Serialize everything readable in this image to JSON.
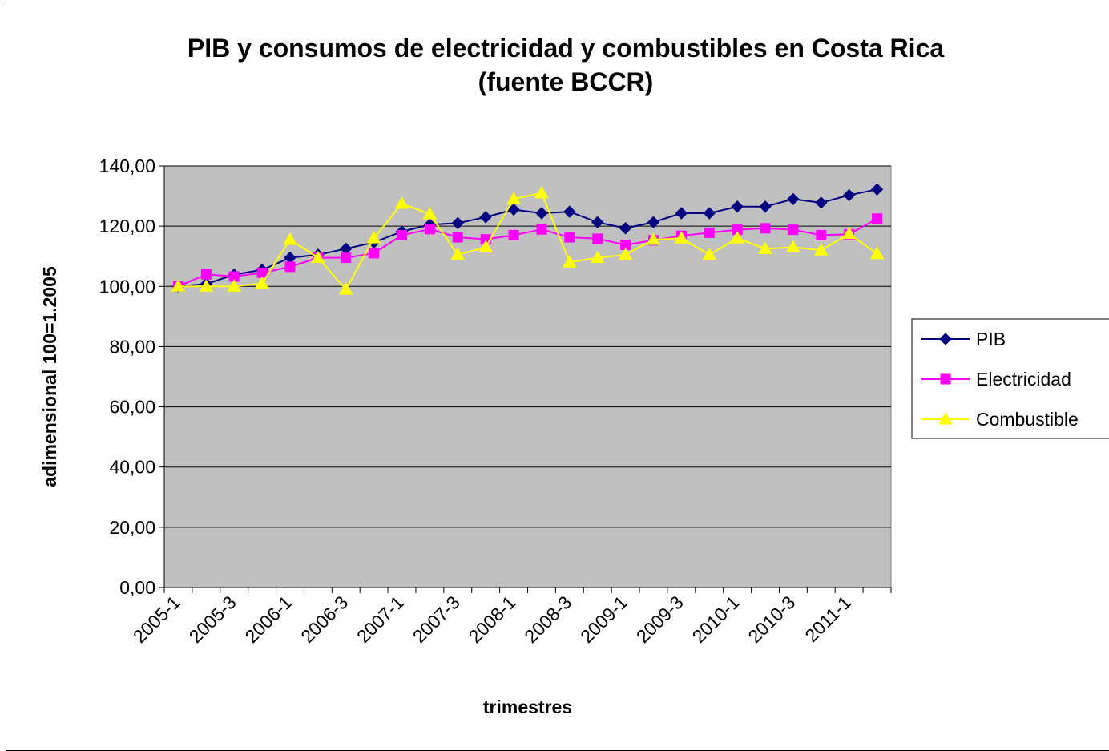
{
  "chart_data": {
    "type": "line",
    "title": [
      "PIB y consumos de electricidad y combustibles en Costa Rica",
      "(fuente BCCR)"
    ],
    "xlabel": "trimestres",
    "ylabel": "adimensional 100=1.2005",
    "ylim": [
      0,
      140
    ],
    "ytick_values": [
      0,
      20,
      40,
      60,
      80,
      100,
      120,
      140
    ],
    "ytick_labels": [
      "0,00",
      "20,00",
      "40,00",
      "60,00",
      "80,00",
      "100,00",
      "120,00",
      "140,00"
    ],
    "categories": [
      "2005-1",
      "2005-2",
      "2005-3",
      "2005-4",
      "2006-1",
      "2006-2",
      "2006-3",
      "2006-4",
      "2007-1",
      "2007-2",
      "2007-3",
      "2007-4",
      "2008-1",
      "2008-2",
      "2008-3",
      "2008-4",
      "2009-1",
      "2009-2",
      "2009-3",
      "2009-4",
      "2010-1",
      "2010-2",
      "2010-3",
      "2010-4",
      "2011-1",
      "2011-2"
    ],
    "xtick_labels": [
      "2005-1",
      "",
      "2005-3",
      "",
      "2006-1",
      "",
      "2006-3",
      "",
      "2007-1",
      "",
      "2007-3",
      "",
      "2008-1",
      "",
      "2008-3",
      "",
      "2009-1",
      "",
      "2009-3",
      "",
      "2010-1",
      "",
      "2010-3",
      "",
      "2011-1",
      ""
    ],
    "grid": true,
    "plot_background": "#C0C0C0",
    "legend_position": "right",
    "series": [
      {
        "name": "PIB",
        "color": "#000080",
        "marker": "diamond",
        "values": [
          100.0,
          100.8,
          103.9,
          105.5,
          109.5,
          110.5,
          112.5,
          114.6,
          118.2,
          120.5,
          121.0,
          123.0,
          125.5,
          124.3,
          124.8,
          121.3,
          119.3,
          121.3,
          124.3,
          124.3,
          126.5,
          126.5,
          129.0,
          127.8,
          130.3,
          132.2
        ]
      },
      {
        "name": "Electricidad",
        "color": "#FF00FF",
        "marker": "square",
        "values": [
          100.0,
          104.0,
          103.3,
          104.5,
          106.5,
          109.5,
          109.5,
          111.0,
          117.0,
          119.0,
          116.3,
          115.6,
          117.0,
          118.9,
          116.3,
          115.8,
          113.8,
          115.3,
          116.8,
          117.8,
          118.8,
          119.3,
          118.8,
          117.0,
          117.3,
          122.5
        ]
      },
      {
        "name": "Combustible",
        "color": "#FFFF00",
        "marker": "triangle",
        "values": [
          100.0,
          100.0,
          100.0,
          101.0,
          115.5,
          109.5,
          99.0,
          116.0,
          127.5,
          124.0,
          110.5,
          113.0,
          129.0,
          131.0,
          108.0,
          109.5,
          110.5,
          115.5,
          116.0,
          110.5,
          116.0,
          112.5,
          113.0,
          112.0,
          117.5,
          110.8
        ]
      }
    ]
  }
}
